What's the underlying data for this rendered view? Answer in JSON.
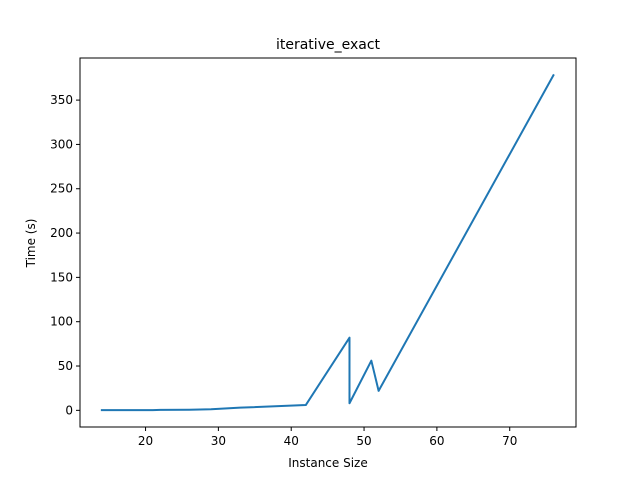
{
  "chart_data": {
    "type": "line",
    "title": "iterative_exact",
    "xlabel": "Instance Size",
    "ylabel": "Time (s)",
    "xlim": [
      11,
      79.1
    ],
    "ylim": [
      -18.8,
      397.5
    ],
    "xticks": [
      20,
      30,
      40,
      50,
      60,
      70
    ],
    "yticks": [
      0,
      50,
      100,
      150,
      200,
      250,
      300,
      350
    ],
    "grid": false,
    "color": "#1f77b4",
    "series": [
      {
        "x": [
          14,
          21,
          22,
          26,
          29,
          33,
          42,
          48,
          48,
          51,
          52,
          76
        ],
        "y": [
          0.2,
          0.3,
          0.5,
          0.6,
          1.2,
          3,
          6,
          82,
          8,
          56,
          22,
          378
        ]
      }
    ]
  }
}
